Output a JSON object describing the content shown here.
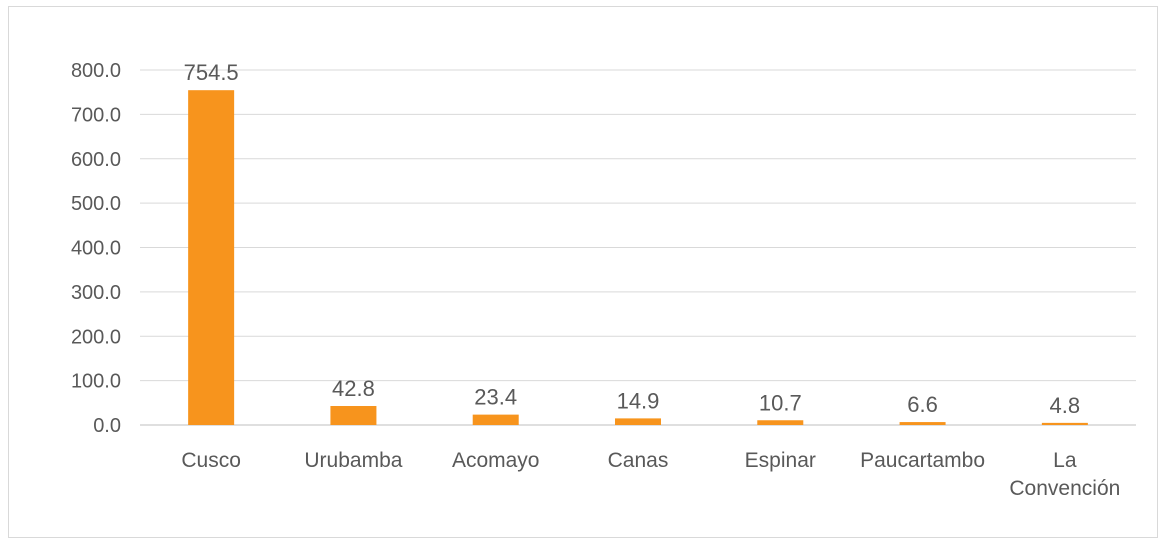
{
  "chart_data": {
    "type": "bar",
    "categories": [
      "Cusco",
      "Urubamba",
      "Acomayo",
      "Canas",
      "Espinar",
      "Paucartambo",
      "La Convención"
    ],
    "values": [
      754.5,
      42.8,
      23.4,
      14.9,
      10.7,
      6.6,
      4.8
    ],
    "data_labels": [
      "754.5",
      "42.8",
      "23.4",
      "14.9",
      "10.7",
      "6.6",
      "4.8"
    ],
    "ylim": [
      0,
      800
    ],
    "yticks": [
      0,
      100,
      200,
      300,
      400,
      500,
      600,
      700,
      800
    ],
    "ytick_labels": [
      "0.0",
      "100.0",
      "200.0",
      "300.0",
      "400.0",
      "500.0",
      "600.0",
      "700.0",
      "800.0"
    ],
    "grid": true,
    "legend": "none",
    "colors": {
      "bar": "#f7941d"
    }
  }
}
